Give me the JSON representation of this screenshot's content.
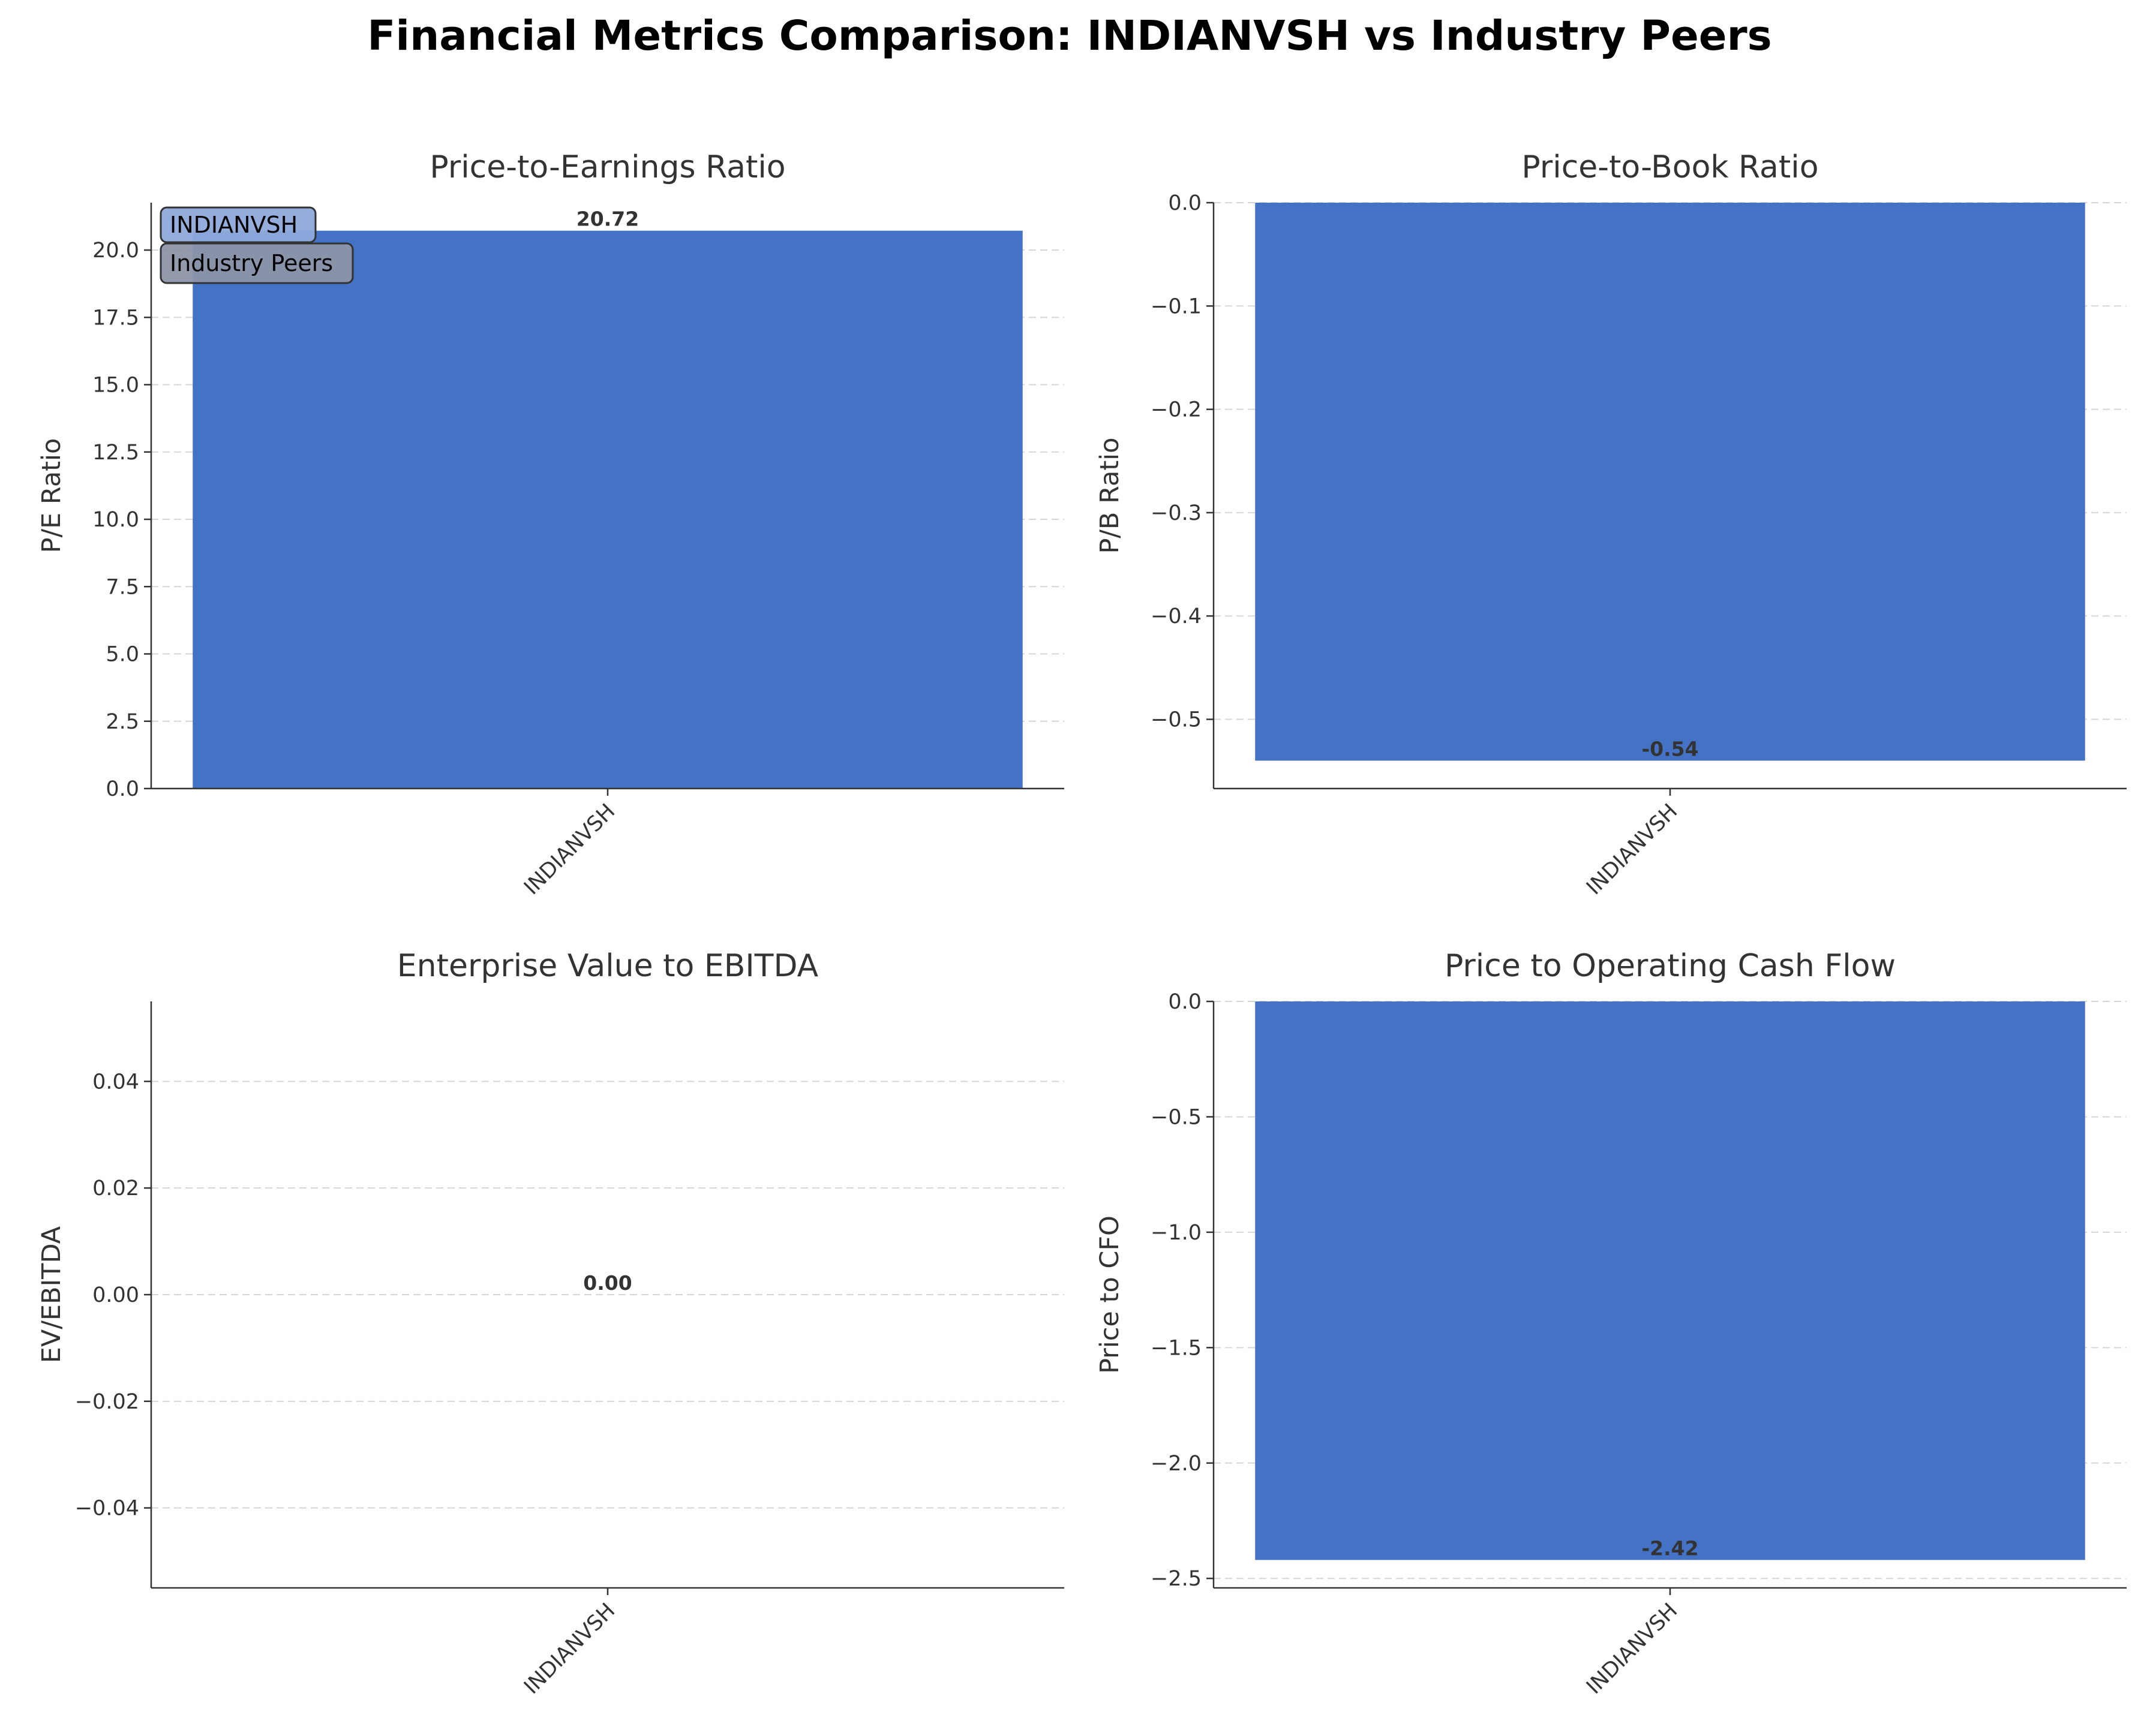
{
  "figure": {
    "suptitle": "Financial Metrics Comparison: INDIANVSH vs Industry Peers"
  },
  "colors": {
    "company_bar": "#4472c4",
    "legend_company_bg": "#8ea9db",
    "legend_peers_bg": "#8c95a8"
  },
  "legend": {
    "placement": "top-left of first subplot",
    "entries": [
      "INDIANVSH",
      "Industry Peers"
    ]
  },
  "chart_data": [
    {
      "type": "bar",
      "title": "Price-to-Earnings Ratio",
      "ylabel": "P/E Ratio",
      "categories": [
        "INDIANVSH"
      ],
      "values": [
        20.72
      ],
      "value_labels": [
        "20.72"
      ],
      "ylim": [
        0,
        21.76
      ],
      "yticks": [
        0,
        2.5,
        5,
        7.5,
        10,
        12.5,
        15,
        17.5,
        20
      ],
      "ytick_labels": [
        "0.0",
        "2.5",
        "5.0",
        "7.5",
        "10.0",
        "12.5",
        "15.0",
        "17.5",
        "20.0"
      ],
      "grid": "y"
    },
    {
      "type": "bar",
      "title": "Price-to-Book Ratio",
      "ylabel": "P/B Ratio",
      "categories": [
        "INDIANVSH"
      ],
      "values": [
        -0.54
      ],
      "value_labels": [
        "-0.54"
      ],
      "ylim": [
        -0.567,
        0
      ],
      "yticks": [
        0,
        -0.1,
        -0.2,
        -0.3,
        -0.4,
        -0.5
      ],
      "ytick_labels": [
        "0.0",
        "−0.1",
        "−0.2",
        "−0.3",
        "−0.4",
        "−0.5"
      ],
      "grid": "y"
    },
    {
      "type": "bar",
      "title": "Enterprise Value to EBITDA",
      "ylabel": "EV/EBITDA",
      "categories": [
        "INDIANVSH"
      ],
      "values": [
        0
      ],
      "value_labels": [
        "0.00"
      ],
      "ylim": [
        -0.055,
        0.055
      ],
      "yticks": [
        0.04,
        0.02,
        0,
        -0.02,
        -0.04
      ],
      "ytick_labels": [
        "0.04",
        "0.02",
        "0.00",
        "−0.02",
        "−0.04"
      ],
      "grid": "y"
    },
    {
      "type": "bar",
      "title": "Price to Operating Cash Flow",
      "ylabel": "Price to CFO",
      "categories": [
        "INDIANVSH"
      ],
      "values": [
        -2.42
      ],
      "value_labels": [
        "-2.42"
      ],
      "ylim": [
        -2.541,
        0
      ],
      "yticks": [
        0,
        -0.5,
        -1,
        -1.5,
        -2,
        -2.5
      ],
      "ytick_labels": [
        "0.0",
        "−0.5",
        "−1.0",
        "−1.5",
        "−2.0",
        "−2.5"
      ],
      "grid": "y"
    }
  ]
}
